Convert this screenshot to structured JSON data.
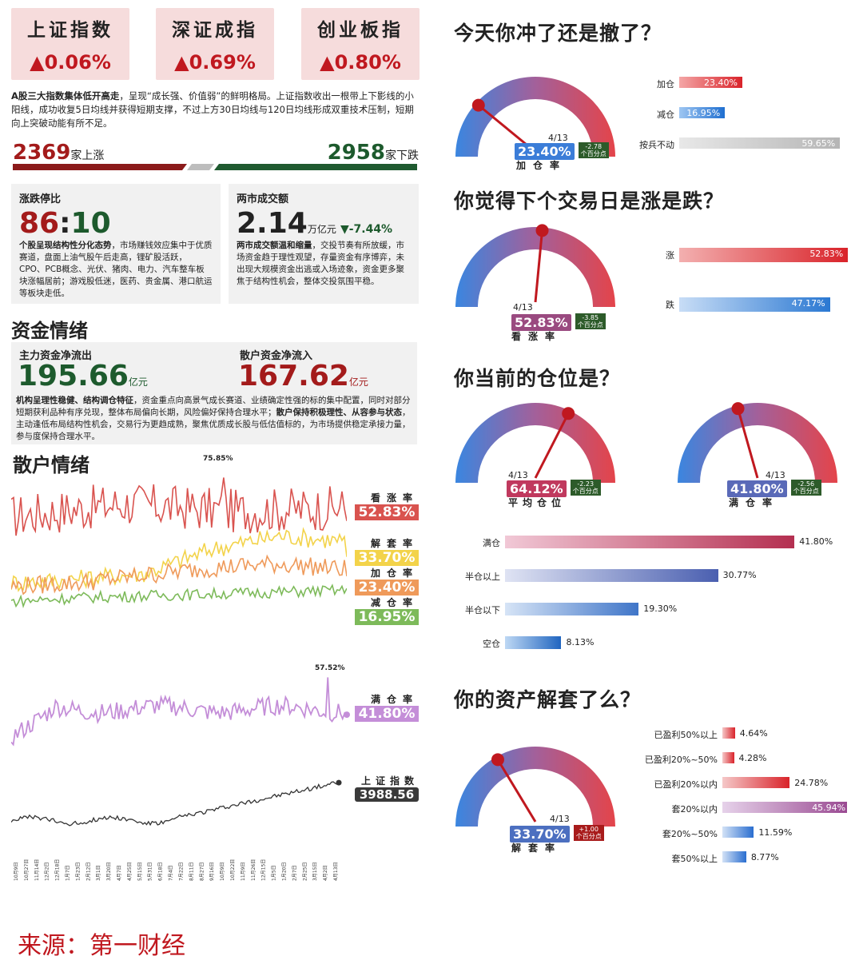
{
  "indices": [
    {
      "name": "上证指数",
      "change": "▲0.06%"
    },
    {
      "name": "深证成指",
      "change": "▲0.69%"
    },
    {
      "name": "创业板指",
      "change": "▲0.80%"
    }
  ],
  "summary": {
    "bold": "A股三大指数集体低开高走",
    "text": "，呈现“成长强、价值弱”的鲜明格局。上证指数收出一根带上下影线的小阳线，成功收复5日均线并获得短期支撑，不过上方30日均线与120日均线形成双重技术压制，短期向上突破动能有所不足。"
  },
  "breadth": {
    "up_count": "2369",
    "up_label": "家上涨",
    "down_count": "2958",
    "down_label": "家下跌"
  },
  "limit": {
    "title": "涨跌停比",
    "ratio_up": "86",
    "ratio_sep": ":",
    "ratio_down": "10",
    "text_bold": "个股呈现结构性分化态势",
    "text": "，市场赚钱效应集中于优质赛道，盘面上油气股午后走高，锂矿股活跃，CPO、PCB概念、光伏、猪肉、电力、汽车整车板块涨幅居前；游戏股低迷，医药、贵金属、港口航运等板块走低。"
  },
  "turnover": {
    "title": "两市成交额",
    "value": "2.14",
    "unit": "万亿元",
    "change": "▼-7.44%",
    "text_bold": "两市成交额温和缩量",
    "text": "，交投节奏有所放缓，市场资金趋于理性观望，存量资金有序博弈，未出现大规模资金出逃或入场迹象，资金更多聚焦于结构性机会，整体交投氛围平稳。"
  },
  "fund_section_title": "资金情绪",
  "fund": {
    "main_title": "主力资金净流出",
    "main_value": "195.66",
    "main_unit": "亿元",
    "retail_title": "散户资金净流入",
    "retail_value": "167.62",
    "retail_unit": "亿元",
    "text_bold1": "机构呈理性稳健、结构调仓特征",
    "text1": "，资金重点向高景气成长赛道、业绩确定性强的标的集中配置，同时对部分短期获利品种有序兑现，整体布局偏向长期，风险偏好保持合理水平；",
    "text_bold2": "散户保持积极理性、从容参与状态",
    "text2": "，主动逢低布局结构性机会，交易行为更趋成熟，聚焦优质成长股与低估值标的，为市场提供稳定承接力量，参与度保持合理水平。"
  },
  "retail_section_title": "散户情绪",
  "sentiment_chart": {
    "peak_label": "75.85%",
    "series": [
      {
        "name": "看涨率",
        "value": "52.83%",
        "color": "#d9534f"
      },
      {
        "name": "解套率",
        "value": "33.70%",
        "color": "#f3d34a"
      },
      {
        "name": "加仓率",
        "value": "23.40%",
        "color": "#ef9a5a"
      },
      {
        "name": "减仓率",
        "value": "16.95%",
        "color": "#7dba5a"
      }
    ]
  },
  "chart_data": [
    {
      "type": "line",
      "series": [
        {
          "name": "看涨率",
          "last": 52.83,
          "peak": 75.85
        },
        {
          "name": "解套率",
          "last": 33.7
        },
        {
          "name": "加仓率",
          "last": 23.4
        },
        {
          "name": "减仓率",
          "last": 16.95
        }
      ]
    },
    {
      "type": "line",
      "series": [
        {
          "name": "满仓率",
          "last": 41.8,
          "peak": 57.52
        }
      ]
    },
    {
      "type": "line",
      "series": [
        {
          "name": "上证指数",
          "last": 3988.56
        }
      ],
      "x_ticks": [
        "10月9日",
        "10月27日",
        "11月14日",
        "12月2日",
        "12月18日",
        "1月7日",
        "1月23日",
        "2月12日",
        "3月1日",
        "3月20日",
        "4月7日",
        "4月25日",
        "5月15日",
        "5月31日",
        "6月18日",
        "7月4日",
        "7月22日",
        "8月11日",
        "8月27日",
        "9月16日",
        "10月9日",
        "10月22日",
        "11月9日",
        "11月26日",
        "12月15日",
        "1月5日",
        "1月20日",
        "2月7日",
        "2月25日",
        "3月15日",
        "4月2日",
        "4月13日"
      ]
    },
    {
      "type": "bar",
      "title": "你冲了还是撤了",
      "categories": [
        "加仓",
        "减仓",
        "按兵不动"
      ],
      "values": [
        23.4,
        16.95,
        59.65
      ]
    },
    {
      "type": "bar",
      "categories": [
        "涨",
        "跌"
      ],
      "values": [
        52.83,
        47.17
      ]
    },
    {
      "type": "bar",
      "categories": [
        "满仓",
        "半仓以上",
        "半仓以下",
        "空仓"
      ],
      "values": [
        41.8,
        30.77,
        19.3,
        8.13
      ]
    },
    {
      "type": "bar",
      "categories": [
        "已盈利50%以上",
        "已盈利20%~50%",
        "已盈利20%以内",
        "套20%以内",
        "套20%~50%",
        "套50%以上"
      ],
      "values": [
        4.64,
        4.28,
        24.78,
        45.94,
        11.59,
        8.77
      ]
    }
  ],
  "full_chart": {
    "peak_label": "57.52%",
    "name": "满仓率",
    "value": "41.80%"
  },
  "index_chart": {
    "name": "上证指数",
    "value": "3988.56"
  },
  "q1": {
    "title": "今天你冲了还是撤了？",
    "date": "4/13",
    "gauge_value": "23.40%",
    "gauge_fraction": 0.234,
    "change": "-2.78",
    "change_unit": "个百分点",
    "label": "加仓率",
    "bars": [
      {
        "label": "加仓",
        "value": "23.40%",
        "num": 23.4
      },
      {
        "label": "减仓",
        "value": "16.95%",
        "num": 16.95
      },
      {
        "label": "按兵不动",
        "value": "59.65%",
        "num": 59.65
      }
    ]
  },
  "q2": {
    "title": "你觉得下个交易日是涨是跌？",
    "date": "4/13",
    "gauge_value": "52.83%",
    "gauge_fraction": 0.5283,
    "change": "-3.85",
    "change_unit": "个百分点",
    "label": "看涨率",
    "bars": [
      {
        "label": "涨",
        "value": "52.83%",
        "num": 52.83
      },
      {
        "label": "跌",
        "value": "47.17%",
        "num": 47.17
      }
    ]
  },
  "q3": {
    "title": "你当前的仓位是？",
    "g1": {
      "date": "4/13",
      "value": "64.12%",
      "fraction": 0.6412,
      "change": "-2.23",
      "change_unit": "个百分点",
      "label": "平均仓位"
    },
    "g2": {
      "date": "4/13",
      "value": "41.80%",
      "fraction": 0.418,
      "change": "-2.56",
      "change_unit": "个百分点",
      "label": "满仓率"
    },
    "bars": [
      {
        "label": "满仓",
        "value": "41.80%",
        "num": 41.8
      },
      {
        "label": "半仓以上",
        "value": "30.77%",
        "num": 30.77
      },
      {
        "label": "半仓以下",
        "value": "19.30%",
        "num": 19.3
      },
      {
        "label": "空仓",
        "value": "8.13%",
        "num": 8.13
      }
    ]
  },
  "q4": {
    "title": "你的资产解套了么？",
    "date": "4/13",
    "gauge_value": "33.70%",
    "gauge_fraction": 0.337,
    "change": "+1.00",
    "change_unit": "个百分点",
    "label": "解套率",
    "bars": [
      {
        "label": "已盈利50%以上",
        "value": "4.64%",
        "num": 4.64
      },
      {
        "label": "已盈利20%~50%",
        "value": "4.28%",
        "num": 4.28
      },
      {
        "label": "已盈利20%以内",
        "value": "24.78%",
        "num": 24.78
      },
      {
        "label": "套20%以内",
        "value": "45.94%",
        "num": 45.94
      },
      {
        "label": "套20%~50%",
        "value": "11.59%",
        "num": 11.59
      },
      {
        "label": "套50%以上",
        "value": "8.77%",
        "num": 8.77
      }
    ]
  },
  "source": "来源：第一财经"
}
